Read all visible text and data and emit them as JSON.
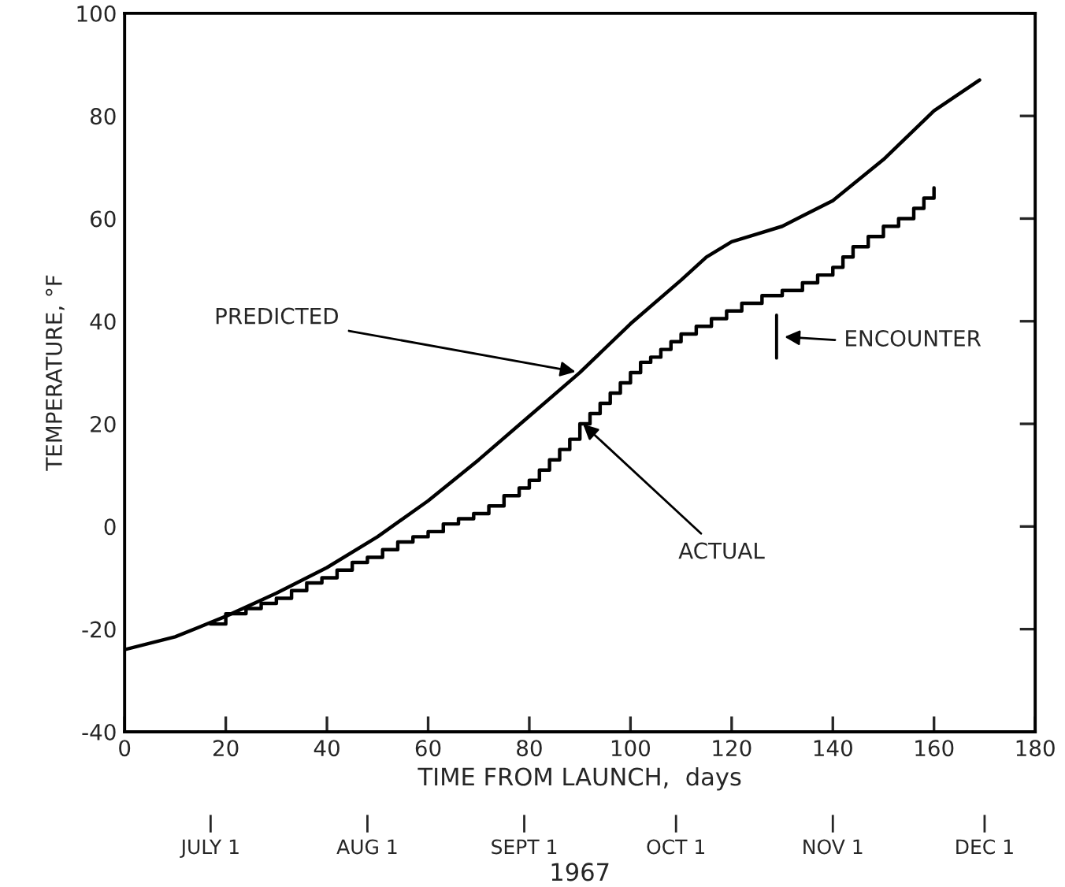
{
  "chart_data": {
    "type": "line",
    "xlabel": "TIME FROM LAUNCH,  days",
    "ylabel": "TEMPERATURE, °F",
    "x2label": "1967",
    "xlim": [
      0,
      180
    ],
    "xticks": [
      0,
      20,
      40,
      60,
      80,
      100,
      120,
      140,
      160,
      180
    ],
    "ylim": [
      -40,
      100
    ],
    "yticks": [
      -40,
      -20,
      0,
      20,
      40,
      60,
      80,
      100
    ],
    "x2lim": [
      "1967-06-14",
      "1967-12-11"
    ],
    "x2ticks": [
      {
        "value": "1967-07-01",
        "label": "JULY 1"
      },
      {
        "value": "1967-08-01",
        "label": "AUG 1"
      },
      {
        "value": "1967-09-01",
        "label": "SEPT 1"
      },
      {
        "value": "1967-10-01",
        "label": "OCT 1"
      },
      {
        "value": "1967-11-01",
        "label": "NOV 1"
      },
      {
        "value": "1967-12-01",
        "label": "DEC 1"
      }
    ],
    "grid": false,
    "legend": false,
    "series": [
      {
        "color": "#000000",
        "x": [
          0,
          10,
          20,
          30,
          40,
          50,
          60,
          70,
          80,
          90,
          100,
          110,
          115,
          120,
          125,
          130,
          140,
          150,
          160,
          169
        ],
        "values": [
          -24,
          -21.5,
          -17.5,
          -13,
          -8,
          -2,
          5,
          13,
          21.5,
          30,
          39.5,
          48,
          52.5,
          55.5,
          57,
          58.5,
          63.5,
          71.5,
          81,
          87
        ]
      },
      {
        "type": "step",
        "color": "#000000",
        "x": [
          17,
          20,
          24,
          27,
          30,
          33,
          36,
          39,
          42,
          45,
          48,
          51,
          54,
          57,
          60,
          63,
          66,
          69,
          72,
          75,
          78,
          80,
          82,
          84,
          86,
          88,
          90,
          92,
          94,
          96,
          98,
          100,
          102,
          104,
          106,
          108,
          110,
          113,
          116,
          119,
          122,
          126,
          130,
          134,
          137,
          140,
          142,
          144,
          147,
          150,
          153,
          156,
          158,
          160
        ],
        "values": [
          -19,
          -17,
          -16,
          -15,
          -14,
          -12.5,
          -11,
          -10,
          -8.5,
          -7,
          -6,
          -4.5,
          -3,
          -2,
          -1,
          0.5,
          1.5,
          2.5,
          4,
          6,
          7.5,
          9,
          11,
          13,
          15,
          17,
          20,
          22,
          24,
          26,
          28,
          30,
          32,
          33,
          34.5,
          36,
          37.5,
          39,
          40.5,
          42,
          43.5,
          45,
          46,
          47.5,
          49,
          50.5,
          52.5,
          54.5,
          56.5,
          58.5,
          60,
          62,
          64,
          66
        ]
      }
    ],
    "annotations": [
      {
        "text": "PREDICTED",
        "x": 90,
        "y": 30
      },
      {
        "text": "ACTUAL",
        "x": 90,
        "y": 20.5
      },
      "ENCOUNTER"
    ]
  }
}
